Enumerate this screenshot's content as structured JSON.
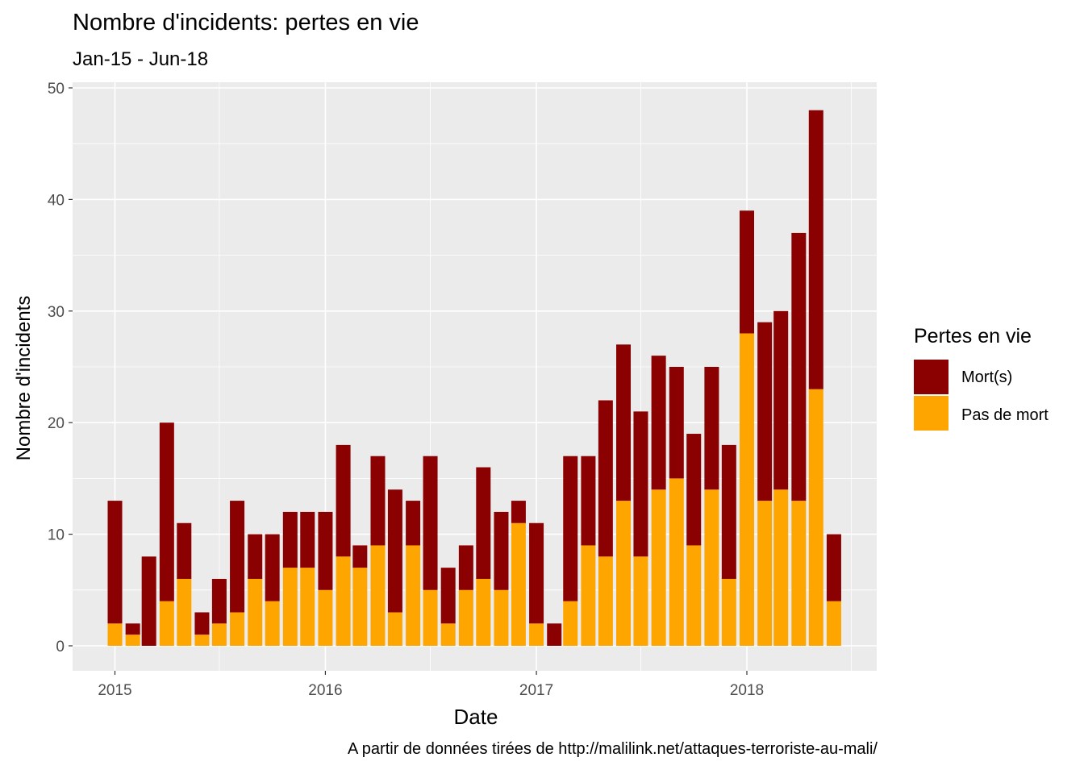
{
  "chart_data": {
    "type": "bar",
    "stacked": true,
    "title": "Nombre d'incidents: pertes en vie",
    "subtitle": "Jan-15 - Jun-18",
    "xlabel": "Date",
    "ylabel": "Nombre d'incidents",
    "caption": "A partir de données tirées de http://malilink.net/attaques-terroriste-au-mali/",
    "ylim": [
      0,
      50
    ],
    "yticks": [
      0,
      10,
      20,
      30,
      40,
      50
    ],
    "xticks": [
      "2015",
      "2016",
      "2017",
      "2018"
    ],
    "grid": true,
    "legend": {
      "title": "Pertes en vie",
      "position": "right",
      "entries": [
        {
          "label": "Mort(s)",
          "color": "#8B0000"
        },
        {
          "label": "Pas de mort",
          "color": "#FFA500"
        }
      ]
    },
    "categories": [
      "2015-01",
      "2015-02",
      "2015-03",
      "2015-04",
      "2015-05",
      "2015-06",
      "2015-07",
      "2015-08",
      "2015-09",
      "2015-10",
      "2015-11",
      "2015-12",
      "2016-01",
      "2016-02",
      "2016-03",
      "2016-04",
      "2016-05",
      "2016-06",
      "2016-07",
      "2016-08",
      "2016-09",
      "2016-10",
      "2016-11",
      "2016-12",
      "2017-01",
      "2017-02",
      "2017-03",
      "2017-04",
      "2017-05",
      "2017-06",
      "2017-07",
      "2017-08",
      "2017-09",
      "2017-10",
      "2017-11",
      "2017-12",
      "2018-01",
      "2018-02",
      "2018-03",
      "2018-04",
      "2018-05",
      "2018-06"
    ],
    "series": [
      {
        "name": "Pas de mort",
        "color": "#FFA500",
        "values": [
          2,
          1,
          0,
          4,
          6,
          1,
          2,
          3,
          6,
          4,
          7,
          7,
          5,
          8,
          7,
          9,
          3,
          9,
          5,
          2,
          5,
          6,
          5,
          11,
          2,
          0,
          4,
          9,
          8,
          13,
          8,
          14,
          15,
          9,
          14,
          6,
          28,
          13,
          14,
          13,
          23,
          4
        ]
      },
      {
        "name": "Mort(s)",
        "color": "#8B0000",
        "values": [
          11,
          1,
          8,
          16,
          5,
          2,
          4,
          10,
          4,
          6,
          5,
          5,
          7,
          10,
          2,
          8,
          11,
          4,
          12,
          5,
          4,
          10,
          7,
          2,
          9,
          2,
          13,
          8,
          14,
          14,
          13,
          12,
          10,
          10,
          11,
          12,
          11,
          16,
          16,
          24,
          25,
          6
        ]
      }
    ]
  }
}
